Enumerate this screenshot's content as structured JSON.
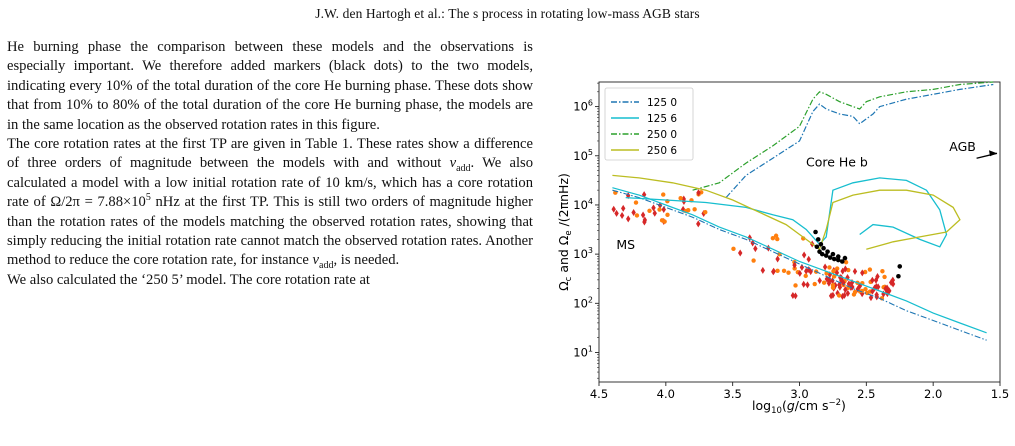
{
  "header": {
    "title": "J.W. den Hartogh  et al.: The s process in rotating low-mass AGB stars"
  },
  "paragraphs": [
    {
      "lines": [
        "He burning phase the comparison between these models and",
        "the observations is especially important. We therefore added",
        "markers (black dots) to the two models, indicating every 10%",
        "of the total duration of the core He burning phase. These dots",
        "show that from 10% to 80% of the total duration of the core",
        "He burning phase, the models are in the same location as the",
        "observed rotation rates in this figure."
      ]
    },
    {
      "lines": [
        "The core rotation rates at the first TP are given in Table 1. These",
        "rates show a difference of three orders of magnitude between",
        "the models with and without ν_add. We also calculated a model",
        "with a low initial rotation rate of 10 km/s, which has a core",
        "rotation rate of Ω/2π = 7.88×10^5 nHz at the first TP. This is",
        "still two orders of magnitude higher than the rotation rates",
        "of the models matching the observed rotation rates, showing",
        "that simply reducing the initial rotation rate cannot match the",
        "observed rotation rates. Another method to reduce the core",
        "rotation rate, for instance ν_add, is needed."
      ]
    },
    {
      "lines": [
        "We also calculated the ‘250 5’ model. The core rotation rate at"
      ]
    }
  ],
  "inline": {
    "nu": "ν",
    "add": "add",
    "rate_lead": "rotation rate of ",
    "omega_2pi": "Ω/2π",
    "rate_value": " = 7.88×10",
    "exp": "5",
    "rate_tail": " nHz at the first TP. This is",
    "line11_lead": "the models with and without ",
    "line11_tail": ". We also calculated a model",
    "line17_lead": "rotation rate, for instance ",
    "line17_tail": ", is needed."
  },
  "chart_data": {
    "type": "scatter",
    "title": "",
    "xlabel": "log10(g/cm s^-2)",
    "ylabel": "Ωc and Ωe /(2πnHz)",
    "xlim": [
      4.5,
      1.5
    ],
    "ylim_log10": [
      0.4,
      6.5
    ],
    "y_log": true,
    "xticks": [
      "4.5",
      "4.0",
      "3.5",
      "3.0",
      "2.5",
      "2.0",
      "1.5"
    ],
    "yticks": [
      {
        "base": "10",
        "exp": "1",
        "value": 1
      },
      {
        "base": "10",
        "exp": "2",
        "value": 2
      },
      {
        "base": "10",
        "exp": "3",
        "value": 3
      },
      {
        "base": "10",
        "exp": "4",
        "value": 4
      },
      {
        "base": "10",
        "exp": "5",
        "value": 5
      },
      {
        "base": "10",
        "exp": "6",
        "value": 6
      }
    ],
    "legend_position": "top-left",
    "series": [
      {
        "name": "125 0",
        "color": "#1f77b4",
        "dash": "dashdot"
      },
      {
        "name": "125 6",
        "color": "#17becf",
        "dash": "solid"
      },
      {
        "name": "250 0",
        "color": "#2ca02c",
        "dash": "dashdot"
      },
      {
        "name": "250 6",
        "color": "#bcbd22",
        "dash": "solid"
      }
    ],
    "annotations": [
      {
        "text": "MS",
        "x": 4.3,
        "y": 3.1
      },
      {
        "text": "Core He b",
        "x": 2.72,
        "y": 4.78
      },
      {
        "text": "AGB",
        "x": 1.78,
        "y": 5.1
      }
    ],
    "tracks": {
      "ms_upper": [
        [
          4.4,
          4.35
        ],
        [
          4.2,
          4.2
        ],
        [
          4.0,
          4.0
        ],
        [
          3.8,
          3.8
        ],
        [
          3.6,
          3.55
        ],
        [
          3.4,
          3.35
        ],
        [
          3.2,
          3.1
        ],
        [
          3.0,
          2.85
        ],
        [
          2.8,
          2.65
        ],
        [
          2.6,
          2.45
        ],
        [
          2.4,
          2.25
        ],
        [
          2.2,
          2.05
        ],
        [
          2.0,
          1.8
        ],
        [
          1.8,
          1.6
        ],
        [
          1.6,
          1.4
        ]
      ],
      "ms_lower": [
        [
          4.4,
          4.3
        ],
        [
          4.2,
          4.15
        ],
        [
          4.0,
          3.95
        ],
        [
          3.8,
          3.75
        ],
        [
          3.6,
          3.5
        ],
        [
          3.4,
          3.3
        ],
        [
          3.2,
          3.05
        ],
        [
          3.0,
          2.8
        ],
        [
          2.8,
          2.55
        ],
        [
          2.6,
          2.3
        ],
        [
          2.4,
          2.1
        ],
        [
          2.2,
          1.85
        ],
        [
          2.0,
          1.65
        ],
        [
          1.8,
          1.45
        ],
        [
          1.6,
          1.25
        ]
      ],
      "c125_0": [
        [
          3.55,
          4.15
        ],
        [
          3.4,
          4.6
        ],
        [
          3.2,
          4.95
        ],
        [
          3.0,
          5.3
        ],
        [
          2.9,
          5.9
        ],
        [
          2.85,
          6.05
        ],
        [
          2.8,
          5.95
        ],
        [
          2.7,
          5.85
        ],
        [
          2.6,
          5.8
        ],
        [
          2.55,
          5.65
        ],
        [
          2.5,
          5.75
        ],
        [
          2.45,
          5.85
        ],
        [
          2.4,
          6.0
        ],
        [
          2.2,
          6.15
        ],
        [
          2.0,
          6.25
        ],
        [
          1.8,
          6.35
        ],
        [
          1.55,
          6.45
        ]
      ],
      "c250_0": [
        [
          3.8,
          4.3
        ],
        [
          3.6,
          4.45
        ],
        [
          3.4,
          4.85
        ],
        [
          3.2,
          5.2
        ],
        [
          3.0,
          5.6
        ],
        [
          2.9,
          6.15
        ],
        [
          2.85,
          6.3
        ],
        [
          2.8,
          6.25
        ],
        [
          2.7,
          6.1
        ],
        [
          2.55,
          5.95
        ],
        [
          2.5,
          6.1
        ],
        [
          2.4,
          6.2
        ],
        [
          2.2,
          6.3
        ],
        [
          2.0,
          6.35
        ],
        [
          1.8,
          6.45
        ],
        [
          1.55,
          6.5
        ]
      ],
      "c125_6": [
        [
          4.3,
          4.15
        ],
        [
          4.0,
          4.1
        ],
        [
          3.7,
          4.05
        ],
        [
          3.4,
          3.95
        ],
        [
          3.2,
          3.8
        ],
        [
          3.05,
          3.7
        ],
        [
          2.95,
          3.5
        ],
        [
          2.85,
          3.2
        ],
        [
          2.8,
          3.35
        ],
        [
          2.75,
          4.3
        ],
        [
          2.6,
          4.45
        ],
        [
          2.4,
          4.55
        ],
        [
          2.2,
          4.5
        ],
        [
          2.05,
          4.3
        ],
        [
          1.95,
          3.9
        ],
        [
          1.9,
          3.4
        ],
        [
          1.95,
          3.15
        ],
        [
          2.1,
          3.3
        ],
        [
          2.3,
          3.55
        ],
        [
          2.45,
          3.6
        ],
        [
          2.55,
          3.4
        ]
      ],
      "c250_6": [
        [
          4.4,
          4.6
        ],
        [
          4.2,
          4.55
        ],
        [
          3.95,
          4.45
        ],
        [
          3.7,
          4.3
        ],
        [
          3.5,
          4.1
        ],
        [
          3.3,
          3.85
        ],
        [
          3.1,
          3.6
        ],
        [
          2.95,
          3.3
        ],
        [
          2.85,
          3.1
        ],
        [
          2.8,
          3.5
        ],
        [
          2.75,
          4.05
        ],
        [
          2.6,
          4.2
        ],
        [
          2.4,
          4.3
        ],
        [
          2.2,
          4.3
        ],
        [
          2.0,
          4.2
        ],
        [
          1.85,
          3.95
        ],
        [
          1.8,
          3.7
        ],
        [
          1.9,
          3.45
        ],
        [
          2.1,
          3.35
        ],
        [
          2.3,
          3.25
        ],
        [
          2.5,
          3.1
        ]
      ],
      "he_dots_125": [
        [
          2.87,
          3.15
        ],
        [
          2.85,
          3.05
        ],
        [
          2.83,
          3.0
        ],
        [
          2.8,
          2.97
        ],
        [
          2.77,
          2.93
        ],
        [
          2.74,
          2.9
        ],
        [
          2.71,
          2.88
        ],
        [
          2.68,
          2.85
        ]
      ],
      "he_dots_250": [
        [
          2.88,
          3.45
        ],
        [
          2.86,
          3.3
        ],
        [
          2.84,
          3.2
        ],
        [
          2.82,
          3.12
        ],
        [
          2.79,
          3.05
        ],
        [
          2.75,
          3.0
        ],
        [
          2.71,
          2.95
        ],
        [
          2.66,
          2.92
        ],
        [
          2.25,
          2.75
        ],
        [
          2.26,
          2.55
        ]
      ]
    }
  }
}
